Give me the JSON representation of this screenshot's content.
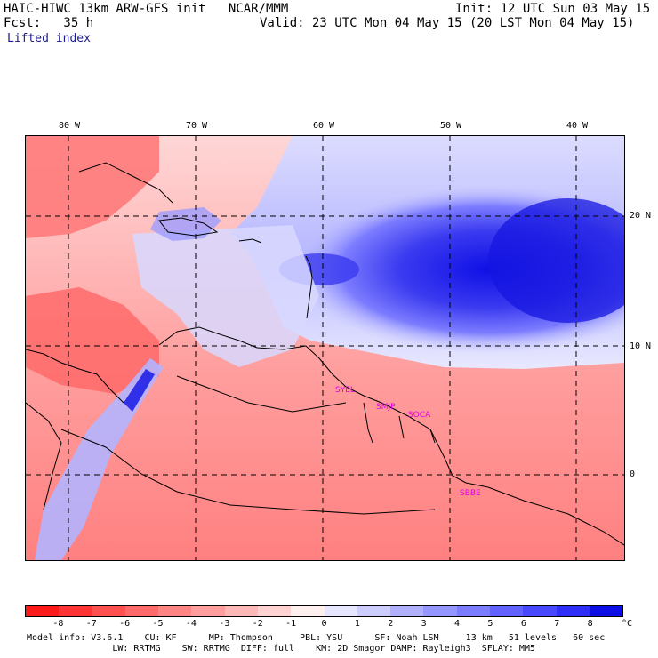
{
  "header": {
    "title": "HAIC-HIWC 13km ARW-GFS init   NCAR/MMM",
    "fcst": "Fcst:   35 h",
    "init": "Init: 12 UTC Sun 03 May 15",
    "valid": "Valid: 23 UTC Mon 04 May 15 (20 LST Mon 04 May 15)",
    "field": "Lifted index"
  },
  "map": {
    "lon_labels": [
      "80 W",
      "70 W",
      "60 W",
      "50 W",
      "40 W"
    ],
    "lat_labels": [
      "20 N",
      "10 N",
      "0"
    ],
    "sites": [
      "SYEL",
      "SMJP",
      "SOCA",
      "SBBE"
    ]
  },
  "colorbar": {
    "labels": [
      "-8",
      "-7",
      "-6",
      "-5",
      "-4",
      "-3",
      "-2",
      "-1",
      "0",
      "1",
      "2",
      "3",
      "4",
      "5",
      "6",
      "7",
      "8",
      "°C"
    ],
    "colors": [
      "#ff1a1a",
      "#ff3535",
      "#ff5050",
      "#ff6a6a",
      "#ff8484",
      "#ff9e9e",
      "#ffb8b8",
      "#ffd2d2",
      "#fff0f0",
      "#e6e6ff",
      "#ccccff",
      "#b0b0ff",
      "#9696ff",
      "#7c7cff",
      "#6262ff",
      "#4848ff",
      "#2e2ef8",
      "#0d0de6"
    ]
  },
  "model_info": {
    "line1": "Model info: V3.6.1    CU: KF      MP: Thompson     PBL: YSU      SF: Noah LSM     13 km   51 levels   60 sec",
    "line2": "                LW: RRTMG    SW: RRTMG  DIFF: full    KM: 2D Smagor DAMP: Rayleigh3  SFLAY: MM5"
  }
}
